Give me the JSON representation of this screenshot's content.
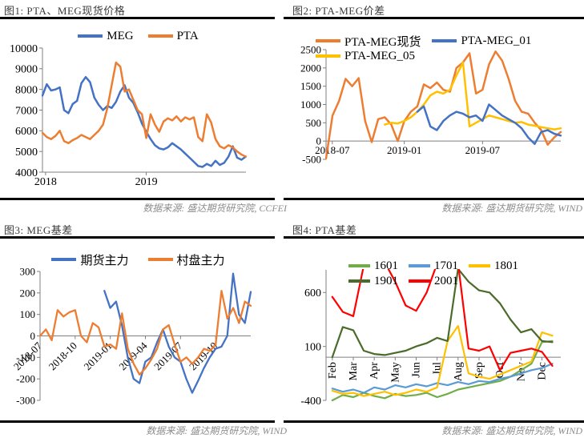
{
  "chart_data": [
    {
      "id": "fig1",
      "type": "line",
      "title": "图1: PTA、MEG现货价格",
      "source": "数据来源: 盛达期货研究院, CCFEI",
      "xlim": [
        2018.0,
        2019.96
      ],
      "ylim": [
        4000,
        10000
      ],
      "axis_y": 4000,
      "yticks": [
        {
          "v": 10000,
          "label": "10000"
        },
        {
          "v": 9000,
          "label": "9000"
        },
        {
          "v": 8000,
          "label": "8000"
        },
        {
          "v": 7000,
          "label": "7000"
        },
        {
          "v": 6000,
          "label": "6000"
        },
        {
          "v": 5000,
          "label": "5000"
        },
        {
          "v": 4000,
          "label": "4000"
        }
      ],
      "xticks": [
        {
          "v": 2018.03,
          "label": "2018"
        },
        {
          "v": 2019.0,
          "label": "2019"
        }
      ],
      "xtick_rotation": 0,
      "legend": {
        "position": "top-center",
        "rows": [
          [
            "MEG",
            "PTA"
          ]
        ]
      },
      "series": [
        {
          "name": "MEG",
          "color": "#4472C4",
          "x_start": 2018.0,
          "x_step": 0.04167,
          "values": [
            7700,
            8250,
            7950,
            8000,
            8100,
            7000,
            6850,
            7300,
            7450,
            8300,
            8600,
            8350,
            7600,
            7250,
            7000,
            7200,
            7100,
            7400,
            7900,
            8200,
            7600,
            7350,
            6900,
            6350,
            5950,
            5600,
            5300,
            5150,
            5100,
            5200,
            5400,
            5250,
            5100,
            4900,
            4700,
            4500,
            4300,
            4250,
            4400,
            4300,
            4550,
            4350,
            4450,
            4750,
            5250,
            4700,
            4600,
            4750
          ]
        },
        {
          "name": "PTA",
          "color": "#ED7D31",
          "x_start": 2018.0,
          "x_step": 0.04167,
          "values": [
            5900,
            5700,
            5600,
            5750,
            6000,
            5500,
            5400,
            5550,
            5650,
            5800,
            5700,
            5600,
            5800,
            6000,
            6300,
            7100,
            8200,
            9300,
            9100,
            7900,
            8000,
            7500,
            7000,
            6800,
            5650,
            6800,
            6300,
            5950,
            6450,
            6600,
            6500,
            6700,
            6450,
            6650,
            6550,
            6650,
            5700,
            5500,
            6800,
            6400,
            5600,
            5250,
            5150,
            5300,
            5200,
            5000,
            4850,
            4750
          ]
        }
      ]
    },
    {
      "id": "fig2",
      "type": "line",
      "title": "图2: PTA-MEG价差",
      "source": "数据来源: 盛达期货研究院, WIND",
      "xlim": [
        2018.5,
        2020.0
      ],
      "ylim": [
        -500,
        2500
      ],
      "axis_y": 0,
      "yticks": [
        {
          "v": 2500,
          "label": "2500"
        },
        {
          "v": 2000,
          "label": "2000"
        },
        {
          "v": 1500,
          "label": "1500"
        },
        {
          "v": 1000,
          "label": "1000"
        },
        {
          "v": 500,
          "label": "500"
        },
        {
          "v": 0,
          "label": "0"
        },
        {
          "v": -500,
          "label": "-500"
        }
      ],
      "xticks": [
        {
          "v": 2018.54,
          "label": "2018-07"
        },
        {
          "v": 2019.0,
          "label": "2019-01"
        },
        {
          "v": 2019.5,
          "label": "2019-07"
        }
      ],
      "xtick_rotation": 0,
      "legend": {
        "position": "top-left",
        "rows": [
          [
            "PTA-MEG现货",
            "PTA-MEG_01"
          ],
          [
            "PTA-MEG_05"
          ]
        ]
      },
      "series": [
        {
          "name": "PTA-MEG现货",
          "color": "#ED7D31",
          "x_start": 2018.5,
          "x_step": 0.04167,
          "values": [
            -480,
            700,
            1100,
            1700,
            1500,
            1720,
            550,
            -30,
            600,
            650,
            450,
            0,
            550,
            800,
            950,
            1550,
            1450,
            1600,
            1400,
            1350,
            2000,
            2150,
            2400,
            1300,
            1400,
            2100,
            2450,
            2200,
            1700,
            1100,
            800,
            750,
            500,
            300,
            -100,
            100,
            250
          ]
        },
        {
          "name": "PTA-MEG_05",
          "color": "#FFC000",
          "x_start": 2018.875,
          "x_step": 0.04167,
          "values": [
            450,
            500,
            480,
            550,
            650,
            800,
            1000,
            1250,
            1350,
            1300,
            1400,
            1800,
            2150,
            400,
            500,
            600,
            700,
            650,
            600,
            550,
            500,
            520,
            450,
            420,
            380,
            350,
            320,
            350
          ]
        },
        {
          "name": "PTA-MEG_01",
          "color": "#4472C4",
          "x_start": 2019.083,
          "x_step": 0.04167,
          "values": [
            800,
            950,
            400,
            300,
            550,
            700,
            800,
            750,
            650,
            700,
            550,
            1000,
            850,
            700,
            600,
            500,
            350,
            100,
            -80,
            250,
            300,
            200,
            150
          ]
        }
      ]
    },
    {
      "id": "fig3",
      "type": "line",
      "title": "图3: MEG基差",
      "source": "数据来源: 盛达期货研究院, WIND",
      "xlim": [
        2018.5,
        2020.0
      ],
      "ylim": [
        -300,
        300
      ],
      "axis_y": 0,
      "yticks": [
        {
          "v": 300,
          "label": "300"
        },
        {
          "v": 200,
          "label": "200"
        },
        {
          "v": 100,
          "label": "100"
        },
        {
          "v": 0,
          "label": "0"
        },
        {
          "v": -100,
          "label": "-100"
        },
        {
          "v": -200,
          "label": "-200"
        },
        {
          "v": -300,
          "label": "-300"
        }
      ],
      "xticks": [
        {
          "v": 2018.5,
          "label": "2018-07"
        },
        {
          "v": 2018.75,
          "label": "2018-10"
        },
        {
          "v": 2019.0,
          "label": "2019-01"
        },
        {
          "v": 2019.25,
          "label": "2019-04"
        },
        {
          "v": 2019.5,
          "label": "2019-07"
        },
        {
          "v": 2019.75,
          "label": "2019-10"
        }
      ],
      "xtick_rotation": -45,
      "legend": {
        "position": "top-center",
        "rows": [
          [
            "期货主力",
            "村盘主力"
          ]
        ]
      },
      "series": [
        {
          "name": "期货主力",
          "color": "#4472C4",
          "x_start": 2018.958,
          "x_step": 0.04167,
          "values": [
            210,
            130,
            160,
            50,
            -100,
            -200,
            -220,
            -120,
            -100,
            -30,
            30,
            -50,
            -100,
            -120,
            -200,
            -265,
            -210,
            -150,
            -100,
            -60,
            -50,
            0,
            290,
            100,
            60,
            205
          ]
        },
        {
          "name": "村盘主力",
          "color": "#ED7D31",
          "x_start": 2018.5,
          "x_step": 0.04167,
          "values": [
            0,
            30,
            -20,
            120,
            90,
            110,
            120,
            0,
            -30,
            60,
            40,
            -50,
            -40,
            -60,
            105,
            -60,
            -130,
            -180,
            -150,
            -110,
            -60,
            30,
            50,
            -40,
            -120,
            -100,
            -130,
            -100,
            -60,
            -70,
            -40,
            210,
            80,
            130,
            60,
            160,
            140
          ]
        }
      ]
    },
    {
      "id": "fig4",
      "type": "line",
      "title": "图4: PTA基差",
      "source": "数据来源: 盛达期货研究院, WIND",
      "xlim": [
        1.7,
        12.9
      ],
      "ylim": [
        -400,
        810
      ],
      "axis_y": 0,
      "yticks": [
        {
          "v": 600,
          "label": "600"
        },
        {
          "v": 100,
          "label": "100"
        },
        {
          "v": -400,
          "label": "-400"
        }
      ],
      "xticks": [
        {
          "v": 2,
          "label": "Feb"
        },
        {
          "v": 3,
          "label": "Mar"
        },
        {
          "v": 4,
          "label": "Apr"
        },
        {
          "v": 5,
          "label": "May"
        },
        {
          "v": 6,
          "label": "Jun"
        },
        {
          "v": 7,
          "label": "Jul"
        },
        {
          "v": 8,
          "label": "Aug"
        },
        {
          "v": 9,
          "label": "Sep"
        },
        {
          "v": 10,
          "label": "Oct"
        },
        {
          "v": 11,
          "label": "Nov"
        },
        {
          "v": 12,
          "label": "Dec"
        }
      ],
      "xtick_rotation": -90,
      "legend": {
        "position": "top-left",
        "rows": [
          [
            "1601",
            "1701",
            "1801"
          ],
          [
            "1901",
            "2001"
          ]
        ]
      },
      "series": [
        {
          "name": "1601",
          "color": "#70AD47",
          "x_start": 2,
          "x_step": 0.5,
          "values": [
            -400,
            -350,
            -370,
            -330,
            -360,
            -380,
            -340,
            -360,
            -350,
            -330,
            -370,
            -340,
            -300,
            -280,
            -260,
            -240,
            -220,
            -180,
            -120,
            -60,
            140,
            150
          ]
        },
        {
          "name": "1701",
          "color": "#5B9BD5",
          "x_start": 2,
          "x_step": 0.5,
          "values": [
            -290,
            -320,
            -300,
            -330,
            -280,
            -300,
            -260,
            -280,
            -250,
            -270,
            -240,
            -260,
            -230,
            -250,
            -220,
            -230,
            -200,
            -180,
            -150,
            -120,
            -100,
            -60
          ]
        },
        {
          "name": "1801",
          "color": "#FFC000",
          "x_start": 2,
          "x_step": 0.5,
          "values": [
            -310,
            -340,
            -330,
            -360,
            -340,
            -320,
            -350,
            -330,
            -300,
            -320,
            -280,
            150,
            290,
            -150,
            -180,
            -200,
            -160,
            -120,
            -80,
            -40,
            230,
            200
          ]
        },
        {
          "name": "1901",
          "color": "#4A6B29",
          "x_start": 2,
          "x_step": 0.5,
          "values": [
            0,
            280,
            250,
            60,
            30,
            20,
            40,
            60,
            100,
            130,
            180,
            150,
            820,
            700,
            620,
            600,
            500,
            350,
            230,
            260,
            150,
            140
          ]
        },
        {
          "name": "2001",
          "color": "#FF0000",
          "x_start": 2,
          "x_step": 0.5,
          "values": [
            560,
            420,
            380,
            850,
            900,
            880,
            700,
            480,
            430,
            600,
            870,
            900,
            870,
            80,
            60,
            100,
            -120,
            40,
            60,
            80,
            50,
            -80
          ]
        }
      ]
    }
  ]
}
